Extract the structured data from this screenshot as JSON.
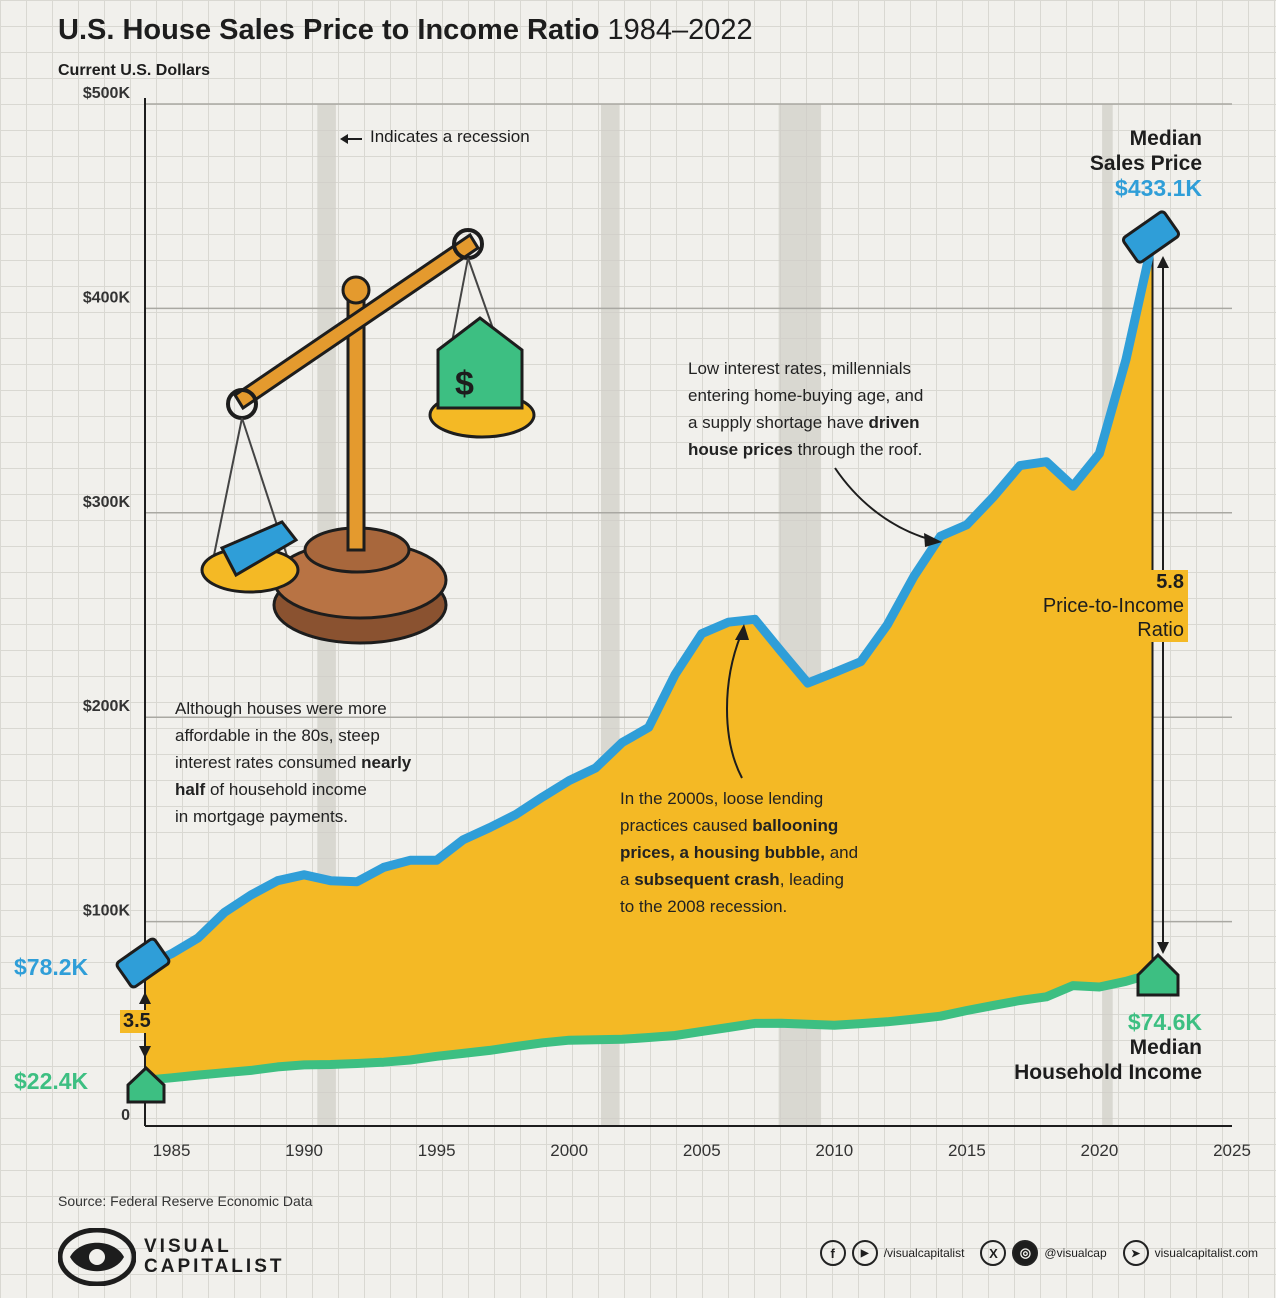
{
  "header": {
    "title_bold": "U.S. House Sales Price to Income Ratio",
    "title_years": "1984–2022",
    "subtitle": "Current U.S. Dollars"
  },
  "legend": {
    "recession_label": "Indicates a recession",
    "arrow": "←"
  },
  "labels": {
    "sales_price_name": "Median Sales Price",
    "sales_price_line1": "Median",
    "sales_price_line2": "Sales Price",
    "sales_price_end": "$433.1K",
    "sales_price_start": "$78.2K",
    "income_name": "Median Household Income",
    "income_line1": "Median",
    "income_line2": "Household Income",
    "income_end": "$74.6K",
    "income_start": "$22.4K",
    "ratio_start": "3.5",
    "ratio_end": "5.8",
    "ratio_line1": "Price-to-Income",
    "ratio_line2": "Ratio"
  },
  "annotations": {
    "eighties_1": "Although houses were more",
    "eighties_2": "affordable in the 80s, steep",
    "eighties_3": "interest rates consumed ",
    "eighties_3b": "nearly",
    "eighties_4b": "half",
    "eighties_4": " of household income",
    "eighties_5": "in mortgage payments.",
    "twothousands_1": "In the 2000s, loose lending",
    "twothousands_2": "practices caused ",
    "twothousands_2b": "ballooning",
    "twothousands_3b": "prices, a housing bubble,",
    "twothousands_3": " and",
    "twothousands_4": "a ",
    "twothousands_4b": "subsequent crash",
    "twothousands_4c": ", leading",
    "twothousands_5": "to the 2008 recession.",
    "recent_1": "Low interest rates, millennials",
    "recent_2": "entering home-buying age, and",
    "recent_3": "a supply shortage have ",
    "recent_3b": "driven",
    "recent_4b": "house prices",
    "recent_4": " through the roof."
  },
  "footer": {
    "source": "Source: Federal Reserve Economic Data",
    "logo_line1": "VISUAL",
    "logo_line2": "CAPITALIST",
    "social_fb_glyph": "f",
    "social_yt_glyph": "▶",
    "social_handle_1": "/visualcapitalist",
    "social_x_glyph": "X",
    "social_ig_glyph": "◎",
    "social_handle_2": "@visualcap",
    "social_web_glyph": "➤",
    "social_site": "visualcapitalist.com"
  },
  "colors": {
    "price_line": "#2f9ed8",
    "income_line": "#3dbf82",
    "area_fill": "#f4b925",
    "recession_band": "#cfcdc6"
  },
  "chart_data": {
    "type": "area",
    "xlim": [
      1984,
      2025
    ],
    "ylim": [
      0,
      500000
    ],
    "x_ticks": [
      1985,
      1990,
      1995,
      2000,
      2005,
      2010,
      2015,
      2020,
      2025
    ],
    "y_ticks": [
      {
        "value": 0,
        "label": "0"
      },
      {
        "value": 100000,
        "label": "$100K"
      },
      {
        "value": 200000,
        "label": "$200K"
      },
      {
        "value": 300000,
        "label": "$300K"
      },
      {
        "value": 400000,
        "label": "$400K"
      },
      {
        "value": 500000,
        "label": "$500K"
      }
    ],
    "recessions": [
      [
        1990.5,
        1991.2
      ],
      [
        2001.2,
        2001.9
      ],
      [
        2007.9,
        2009.5
      ],
      [
        2020.1,
        2020.5
      ]
    ],
    "series": [
      {
        "name": "Median Sales Price",
        "x": [
          1984,
          1985,
          1986,
          1987,
          1988,
          1989,
          1990,
          1991,
          1992,
          1993,
          1994,
          1995,
          1996,
          1997,
          1998,
          1999,
          2000,
          2001,
          2002,
          2003,
          2004,
          2005,
          2006,
          2007,
          2008,
          2009,
          2010,
          2011,
          2012,
          2013,
          2014,
          2015,
          2016,
          2017,
          2018,
          2019,
          2020,
          2021,
          2022
        ],
        "values": [
          78200,
          84300,
          92000,
          104500,
          113000,
          120000,
          122900,
          120000,
          119500,
          126500,
          130000,
          130000,
          140000,
          146000,
          152500,
          161000,
          169000,
          175200,
          187600,
          195000,
          221000,
          240900,
          246500,
          247900,
          232100,
          216700,
          221800,
          227200,
          245200,
          268900,
          288500,
          294200,
          307800,
          323100,
          325000,
          313000,
          329000,
          375000,
          433100
        ]
      },
      {
        "name": "Median Household Income",
        "x": [
          1984,
          1985,
          1986,
          1987,
          1988,
          1989,
          1990,
          1991,
          1992,
          1993,
          1994,
          1995,
          1996,
          1997,
          1998,
          1999,
          2000,
          2001,
          2002,
          2003,
          2004,
          2005,
          2006,
          2007,
          2008,
          2009,
          2010,
          2011,
          2012,
          2013,
          2014,
          2015,
          2016,
          2017,
          2018,
          2019,
          2020,
          2021,
          2022
        ],
        "values": [
          22400,
          23600,
          24900,
          26100,
          27200,
          28900,
          29900,
          30100,
          30600,
          31200,
          32300,
          34100,
          35500,
          37000,
          38900,
          40700,
          41990,
          42200,
          42400,
          43300,
          44300,
          46300,
          48200,
          50200,
          50300,
          49800,
          49300,
          50100,
          51000,
          52300,
          53700,
          56500,
          59000,
          61400,
          63200,
          68700,
          68000,
          70800,
          74600
        ]
      }
    ],
    "ratios": [
      {
        "year": 1984,
        "value": 3.5
      },
      {
        "year": 2022,
        "value": 5.8
      }
    ]
  }
}
